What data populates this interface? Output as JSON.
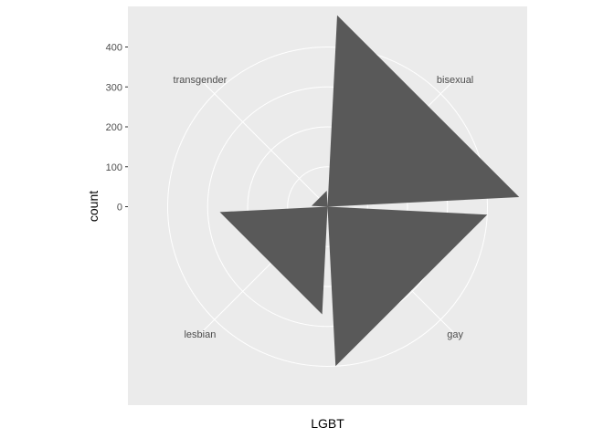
{
  "chart_data": {
    "type": "bar",
    "coord": "polar",
    "categories": [
      "bisexual",
      "gay",
      "lesbian",
      "transgender"
    ],
    "values": [
      480,
      400,
      270,
      40
    ],
    "ylabel": "count",
    "xlabel": "LGBT",
    "yticks": [
      0,
      100,
      200,
      300,
      400
    ],
    "ylim": [
      0,
      480
    ],
    "grid": true
  },
  "colors": {
    "panel": "#ebebeb",
    "grid": "#ffffff",
    "bar": "#595959",
    "tick_text": "#4d4d4d",
    "axis_title": "#000000"
  }
}
